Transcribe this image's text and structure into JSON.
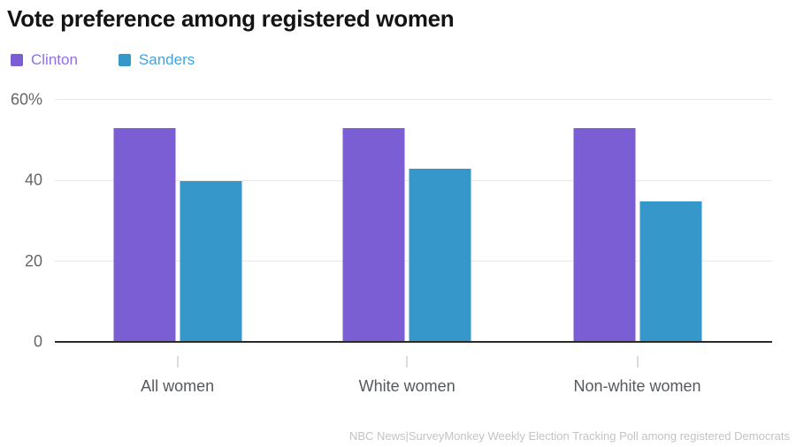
{
  "chart_data": {
    "type": "bar",
    "title": "Vote preference among registered women",
    "categories": [
      "All women",
      "White women",
      "Non-white women"
    ],
    "series": [
      {
        "name": "Clinton",
        "color": "#7B5ED3",
        "text_color": "#8F6FE0",
        "values": [
          53,
          53,
          53
        ]
      },
      {
        "name": "Sanders",
        "color": "#3697CB",
        "text_color": "#41A3DE",
        "values": [
          40,
          43,
          35
        ]
      }
    ],
    "ylim": [
      0,
      60
    ],
    "yticks": [
      {
        "value": 0,
        "label": "0"
      },
      {
        "value": 20,
        "label": "20"
      },
      {
        "value": 40,
        "label": "40"
      },
      {
        "value": 60,
        "label": "60%"
      }
    ],
    "grid": true,
    "legend_position": "top-left",
    "source": "NBC News|SurveyMonkey Weekly Election Tracking Poll among registered Democrats"
  }
}
